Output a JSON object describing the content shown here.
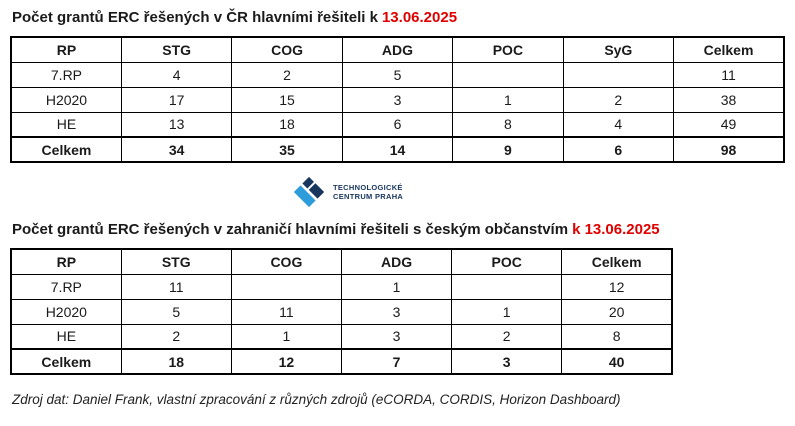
{
  "colors": {
    "date_red": "#e00000",
    "logo_navy": "#17365d",
    "logo_blue": "#2d9cdb",
    "text_black": "#1a1a1a"
  },
  "table_cr": {
    "title_black": "Počet grantů ERC řešených v ČR hlavními řešiteli k",
    "title_red": "13.06.2025",
    "headers": [
      "RP",
      "STG",
      "COG",
      "ADG",
      "POC",
      "SyG",
      "Celkem"
    ],
    "rows": [
      [
        "7.RP",
        "4",
        "2",
        "5",
        "",
        "",
        "11"
      ],
      [
        "H2020",
        "17",
        "15",
        "3",
        "1",
        "2",
        "38"
      ],
      [
        "HE",
        "13",
        "18",
        "6",
        "8",
        "4",
        "49"
      ]
    ],
    "total_row": [
      "Celkem",
      "34",
      "35",
      "14",
      "9",
      "6",
      "98"
    ]
  },
  "logo": {
    "icon": "tc-praha-diamond-logo",
    "line1": "TECHNOLOGICKÉ",
    "line2": "CENTRUM PRAHA"
  },
  "table_abroad": {
    "title_black": "Počet grantů ERC řešených v zahraničí hlavními řešiteli s českým občanstvím",
    "title_red": "k 13.06.2025",
    "headers": [
      "RP",
      "STG",
      "COG",
      "ADG",
      "POC",
      "Celkem"
    ],
    "rows": [
      [
        "7.RP",
        "11",
        "",
        "1",
        "",
        "12"
      ],
      [
        "H2020",
        "5",
        "11",
        "3",
        "1",
        "20"
      ],
      [
        "HE",
        "2",
        "1",
        "3",
        "2",
        "8"
      ]
    ],
    "total_row": [
      "Celkem",
      "18",
      "12",
      "7",
      "3",
      "40"
    ]
  },
  "source_note": "Zdroj dat: Daniel Frank, vlastní zpracování z různých zdrojů (eCORDA, CORDIS, Horizon Dashboard)"
}
